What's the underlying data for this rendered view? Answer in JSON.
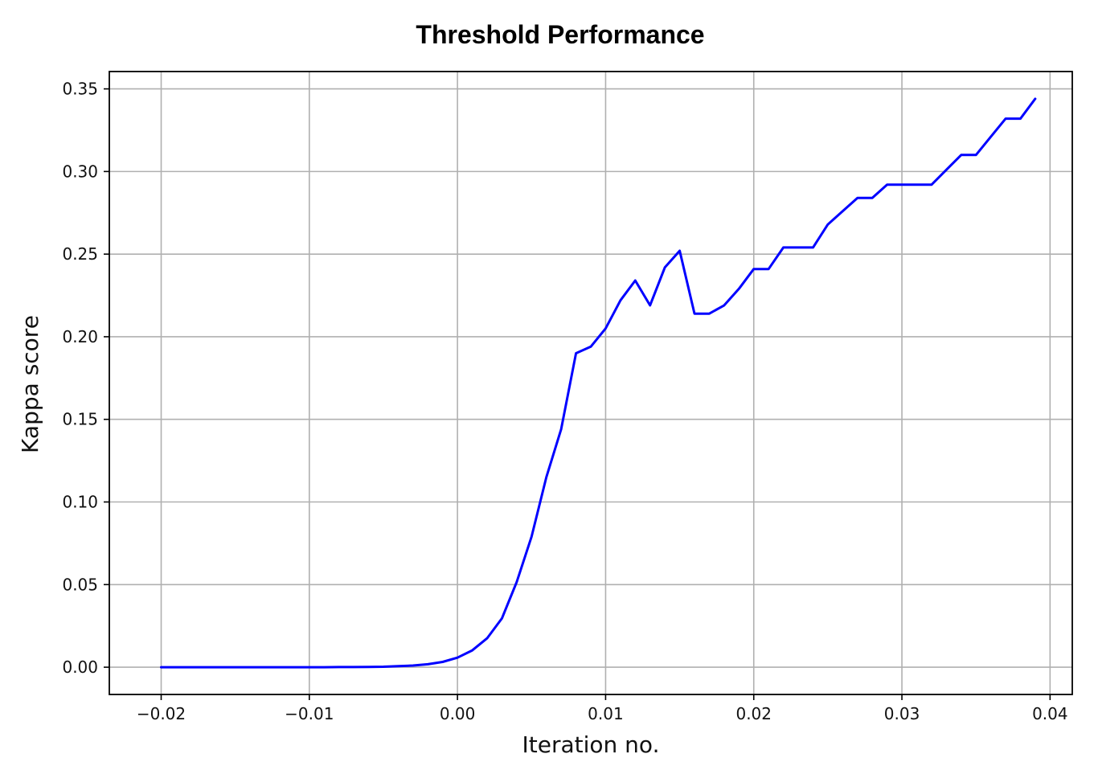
{
  "chart_data": {
    "type": "line",
    "title": "Threshold Performance",
    "xlabel": "Iteration no.",
    "ylabel": "Kappa score",
    "xlim": [
      -0.0235,
      0.0415
    ],
    "ylim": [
      -0.0165,
      0.3605
    ],
    "xticks": [
      -0.02,
      -0.01,
      0.0,
      0.01,
      0.02,
      0.03,
      0.04
    ],
    "xtick_labels": [
      "−0.02",
      "−0.01",
      "0.00",
      "0.01",
      "0.02",
      "0.03",
      "0.04"
    ],
    "yticks": [
      0.0,
      0.05,
      0.1,
      0.15,
      0.2,
      0.25,
      0.3,
      0.35
    ],
    "ytick_labels": [
      "0.00",
      "0.05",
      "0.10",
      "0.15",
      "0.20",
      "0.25",
      "0.30",
      "0.35"
    ],
    "grid": true,
    "color": "#0000ff",
    "x": [
      -0.02,
      -0.019,
      -0.018,
      -0.017,
      -0.016,
      -0.015,
      -0.014,
      -0.013,
      -0.012,
      -0.011,
      -0.01,
      -0.009,
      -0.008,
      -0.007,
      -0.006,
      -0.005,
      -0.004,
      -0.003,
      -0.002,
      -0.001,
      0.0,
      0.001,
      0.002,
      0.003,
      0.004,
      0.005,
      0.006,
      0.007,
      0.008,
      0.009,
      0.01,
      0.011,
      0.012,
      0.013,
      0.014,
      0.015,
      0.016,
      0.017,
      0.018,
      0.019,
      0.02,
      0.021,
      0.022,
      0.023,
      0.024,
      0.025,
      0.026,
      0.027,
      0.028,
      0.029,
      0.03,
      0.031,
      0.032,
      0.033,
      0.034,
      0.035,
      0.036,
      0.037,
      0.038,
      0.039
    ],
    "y": [
      0.0,
      0.0,
      0.0,
      0.0,
      0.0,
      0.0,
      0.0,
      0.0,
      0.0,
      0.0,
      0.0,
      0.0,
      0.0001,
      0.0001,
      0.0002,
      0.0003,
      0.0006,
      0.001,
      0.0018,
      0.0032,
      0.0058,
      0.0102,
      0.0175,
      0.0295,
      0.0515,
      0.079,
      0.115,
      0.144,
      0.19,
      0.194,
      0.205,
      0.222,
      0.234,
      0.219,
      0.242,
      0.252,
      0.214,
      0.214,
      0.219,
      0.229,
      0.241,
      0.241,
      0.254,
      0.254,
      0.254,
      0.268,
      0.276,
      0.284,
      0.284,
      0.292,
      0.292,
      0.292,
      0.292,
      0.301,
      0.31,
      0.31,
      0.321,
      0.332,
      0.332,
      0.344
    ]
  }
}
